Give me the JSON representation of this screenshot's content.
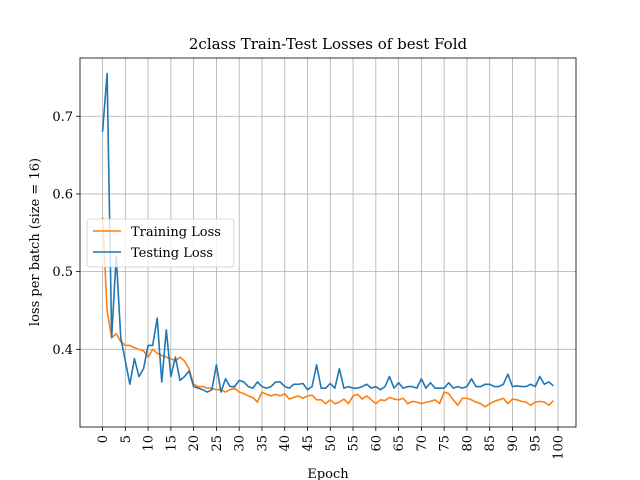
{
  "chart_data": {
    "type": "line",
    "title": "2class Train-Test Losses of best Fold",
    "xlabel": "Epoch",
    "ylabel": "loss per batch (size = 16)",
    "xlim": [
      -4.95,
      103.95
    ],
    "ylim": [
      0.3,
      0.775
    ],
    "xticks": [
      0,
      5,
      10,
      15,
      20,
      25,
      30,
      35,
      40,
      45,
      50,
      55,
      60,
      65,
      70,
      75,
      80,
      85,
      90,
      95,
      100
    ],
    "yticks": [
      0.4,
      0.5,
      0.6,
      0.7
    ],
    "grid": true,
    "legend_position": "center-left",
    "series": [
      {
        "name": "Training Loss",
        "color": "#ff7f0e",
        "y": [
          0.57,
          0.45,
          0.415,
          0.42,
          0.41,
          0.405,
          0.405,
          0.402,
          0.4,
          0.398,
          0.39,
          0.4,
          0.395,
          0.392,
          0.39,
          0.388,
          0.385,
          0.39,
          0.385,
          0.375,
          0.355,
          0.352,
          0.352,
          0.35,
          0.35,
          0.348,
          0.348,
          0.345,
          0.348,
          0.35,
          0.345,
          0.343,
          0.34,
          0.338,
          0.332,
          0.345,
          0.342,
          0.34,
          0.342,
          0.34,
          0.343,
          0.336,
          0.338,
          0.34,
          0.337,
          0.34,
          0.341,
          0.335,
          0.335,
          0.33,
          0.335,
          0.33,
          0.332,
          0.336,
          0.33,
          0.34,
          0.342,
          0.336,
          0.34,
          0.335,
          0.33,
          0.335,
          0.334,
          0.338,
          0.336,
          0.335,
          0.337,
          0.33,
          0.333,
          0.332,
          0.33,
          0.332,
          0.333,
          0.335,
          0.33,
          0.345,
          0.343,
          0.335,
          0.328,
          0.337,
          0.337,
          0.335,
          0.332,
          0.33,
          0.326,
          0.33,
          0.333,
          0.335,
          0.337,
          0.33,
          0.336,
          0.335,
          0.333,
          0.332,
          0.328,
          0.332,
          0.333,
          0.332,
          0.328,
          0.334
        ]
      },
      {
        "name": "Testing Loss",
        "color": "#1f77b4",
        "y": [
          0.68,
          0.755,
          0.415,
          0.52,
          0.415,
          0.385,
          0.355,
          0.388,
          0.365,
          0.375,
          0.405,
          0.405,
          0.44,
          0.358,
          0.425,
          0.365,
          0.39,
          0.36,
          0.365,
          0.372,
          0.352,
          0.35,
          0.348,
          0.345,
          0.348,
          0.38,
          0.345,
          0.362,
          0.352,
          0.352,
          0.36,
          0.358,
          0.352,
          0.35,
          0.358,
          0.352,
          0.35,
          0.352,
          0.358,
          0.358,
          0.352,
          0.35,
          0.355,
          0.355,
          0.356,
          0.348,
          0.352,
          0.38,
          0.35,
          0.35,
          0.356,
          0.35,
          0.375,
          0.35,
          0.352,
          0.35,
          0.35,
          0.352,
          0.355,
          0.35,
          0.352,
          0.348,
          0.352,
          0.365,
          0.35,
          0.357,
          0.35,
          0.352,
          0.352,
          0.35,
          0.362,
          0.35,
          0.357,
          0.35,
          0.35,
          0.35,
          0.357,
          0.35,
          0.352,
          0.35,
          0.352,
          0.362,
          0.352,
          0.352,
          0.355,
          0.355,
          0.352,
          0.352,
          0.355,
          0.368,
          0.352,
          0.353,
          0.352,
          0.352,
          0.355,
          0.352,
          0.365,
          0.355,
          0.358,
          0.353
        ]
      }
    ]
  }
}
